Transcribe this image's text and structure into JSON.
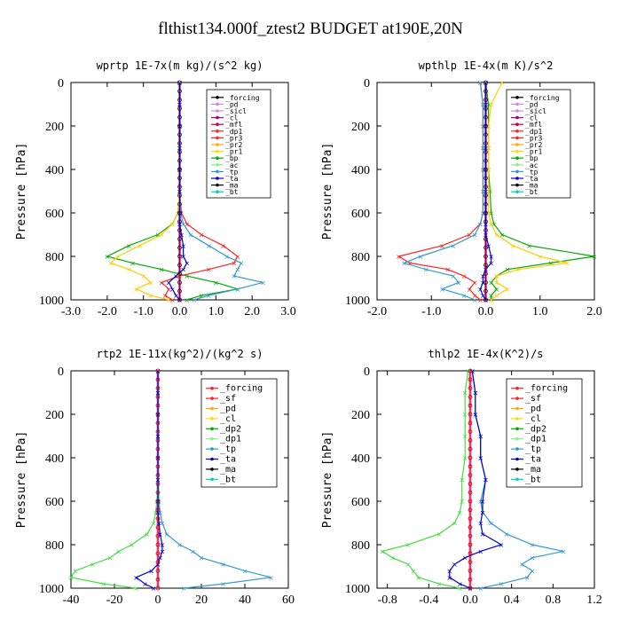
{
  "figure_title": "flthist134.000f_ztest2  BUDGET at190E,20N",
  "chart_data": [
    {
      "type": "line",
      "title": "wprtp  1E-7x(m kg)/(s^2 kg)",
      "ylabel": "Pressure [hPa]",
      "xlim": [
        -3.0,
        3.0
      ],
      "ylim": [
        1000,
        0
      ],
      "xticks": [
        "-3.0",
        "-2.0",
        "-1.0",
        "0.0",
        "1.0",
        "2.0",
        "3.0"
      ],
      "xtick_values": [
        -3,
        -2,
        -1,
        0,
        1,
        2,
        3
      ],
      "yticks": [
        "0",
        "200",
        "400",
        "600",
        "800",
        "1000"
      ],
      "ytick_values": [
        0,
        200,
        400,
        600,
        800,
        1000
      ],
      "legend": [
        "_forcing",
        "_pd",
        "_sicl",
        "_cl",
        "_mfl",
        "_dp1",
        "_pr3",
        "_pr2",
        "_pr1",
        "_bp",
        "_ac",
        "_tp",
        "_ta",
        "_ma",
        "_bt"
      ],
      "legend_colors": [
        "#000000",
        "#cc88ee",
        "#cc88ee",
        "#aa0088",
        "#cc0044",
        "#ff2222",
        "#ff2222",
        "#ffaa00",
        "#ffdd00",
        "#00aa00",
        "#88ee88",
        "#3399cc",
        "#0000cc",
        "#000000",
        "#00cccc"
      ],
      "y": [
        0,
        100,
        200,
        300,
        400,
        500,
        600,
        650,
        700,
        750,
        800,
        830,
        860,
        890,
        920,
        950,
        980,
        1000
      ],
      "series": [
        {
          "name": "_bp",
          "color": "#00aa00",
          "values": [
            0,
            0,
            0,
            0,
            0,
            0,
            -0.05,
            -0.2,
            -0.6,
            -1.4,
            -2.0,
            -1.3,
            -0.5,
            0.2,
            1.0,
            1.6,
            0.6,
            0.2
          ]
        },
        {
          "name": "_ac",
          "color": "#ffcc00",
          "values": [
            0,
            0,
            0,
            0,
            0,
            0,
            -0.05,
            -0.2,
            -0.5,
            -1.1,
            -1.7,
            -1.9,
            -1.4,
            -1.0,
            -0.8,
            -1.2,
            -0.8,
            -0.3
          ]
        },
        {
          "name": "_dp1",
          "color": "#ff2222",
          "values": [
            0,
            0,
            0,
            0,
            0,
            0,
            0.05,
            0.2,
            0.6,
            1.2,
            1.6,
            1.5,
            0.8,
            0.0,
            -0.5,
            -0.3,
            -0.4,
            -0.2
          ]
        },
        {
          "name": "_tp",
          "color": "#3399cc",
          "values": [
            0,
            0,
            0,
            0,
            0,
            0,
            0.03,
            0.1,
            0.3,
            0.8,
            1.3,
            1.7,
            1.6,
            1.5,
            2.3,
            1.6,
            0.8,
            0.4
          ]
        },
        {
          "name": "_ta",
          "color": "#0000cc",
          "values": [
            0,
            0,
            0,
            0,
            0,
            0,
            0,
            0,
            0.05,
            0.1,
            0.1,
            0.2,
            0.1,
            -0.1,
            -0.3,
            -0.2,
            -0.1,
            0
          ]
        }
      ]
    },
    {
      "type": "line",
      "title": "wpthlp  1E-4x(m K)/s^2",
      "ylabel": "Pressure [hPa]",
      "xlim": [
        -2.0,
        2.0
      ],
      "ylim": [
        1000,
        0
      ],
      "xticks": [
        "-2.0",
        "-1.0",
        "0.0",
        "1.0",
        "2.0"
      ],
      "xtick_values": [
        -2,
        -1,
        0,
        1,
        2
      ],
      "yticks": [
        "0",
        "200",
        "400",
        "600",
        "800",
        "1000"
      ],
      "ytick_values": [
        0,
        200,
        400,
        600,
        800,
        1000
      ],
      "legend": [
        "_forcing",
        "_pd",
        "_sicl",
        "_cl",
        "_mfl",
        "_dp1",
        "_pr3",
        "_pr2",
        "_pr1",
        "_bp",
        "_ac",
        "_tp",
        "_ta",
        "_ma",
        "_bt"
      ],
      "legend_colors": [
        "#000000",
        "#cc88ee",
        "#cc88ee",
        "#aa0088",
        "#cc0044",
        "#ff2222",
        "#ff2222",
        "#ffaa00",
        "#ffdd00",
        "#00aa00",
        "#88ee88",
        "#3399cc",
        "#0000cc",
        "#000000",
        "#00cccc"
      ],
      "y": [
        0,
        100,
        200,
        300,
        400,
        500,
        600,
        650,
        700,
        750,
        800,
        830,
        860,
        890,
        920,
        950,
        980,
        1000
      ],
      "series": [
        {
          "name": "_bp",
          "color": "#00aa00",
          "values": [
            0,
            0.05,
            0.05,
            0.05,
            0.05,
            0.08,
            0.1,
            0.15,
            0.3,
            0.8,
            2.0,
            1.2,
            0.4,
            0.2,
            0.1,
            0.2,
            0.1,
            0.1
          ]
        },
        {
          "name": "_ac",
          "color": "#ffcc00",
          "values": [
            0.3,
            0.1,
            0.05,
            0.05,
            0.05,
            0.05,
            0.05,
            0.1,
            0.2,
            0.5,
            1.0,
            1.5,
            0.6,
            0.2,
            0.2,
            0.4,
            0.2,
            0.1
          ]
        },
        {
          "name": "_dp1",
          "color": "#ff2222",
          "values": [
            -0.1,
            -0.05,
            -0.05,
            -0.05,
            -0.05,
            -0.05,
            -0.05,
            -0.1,
            -0.3,
            -0.8,
            -1.6,
            -1.4,
            -0.7,
            -0.4,
            -0.2,
            -0.3,
            -0.2,
            -0.1
          ]
        },
        {
          "name": "_tp",
          "color": "#3399cc",
          "values": [
            -0.1,
            -0.05,
            -0.05,
            -0.05,
            -0.05,
            -0.05,
            -0.05,
            -0.1,
            -0.2,
            -0.6,
            -1.2,
            -1.5,
            -1.1,
            -0.6,
            -0.5,
            -0.8,
            -0.4,
            -0.2
          ]
        },
        {
          "name": "_ta",
          "color": "#0000cc",
          "values": [
            0,
            0,
            0,
            0,
            0,
            0,
            0,
            0,
            0,
            0.05,
            0.1,
            0.1,
            0,
            -0.05,
            -0.05,
            -0.1,
            -0.05,
            0
          ]
        }
      ]
    },
    {
      "type": "line",
      "title": "rtp2  1E-11x(kg^2)/(kg^2 s)",
      "ylabel": "Pressure [hPa]",
      "xlim": [
        -40,
        60
      ],
      "ylim": [
        1000,
        0
      ],
      "xticks": [
        "-40",
        "-20",
        "0",
        "20",
        "40",
        "60"
      ],
      "xtick_values": [
        -40,
        -20,
        0,
        20,
        40,
        60
      ],
      "yticks": [
        "0",
        "200",
        "400",
        "600",
        "800",
        "1000"
      ],
      "ytick_values": [
        0,
        200,
        400,
        600,
        800,
        1000
      ],
      "legend": [
        "_forcing",
        "_sf",
        "_pd",
        "_cl",
        "_dp2",
        "_dp1",
        "_tp",
        "_ta",
        "_ma",
        "_bt"
      ],
      "legend_colors": [
        "#ff2222",
        "#ff2222",
        "#ffaa00",
        "#ffdd00",
        "#00aa00",
        "#88ee88",
        "#3399cc",
        "#0000cc",
        "#000000",
        "#00cccc"
      ],
      "y": [
        0,
        100,
        200,
        300,
        400,
        500,
        600,
        650,
        700,
        750,
        800,
        830,
        860,
        890,
        920,
        950,
        980,
        1000
      ],
      "series": [
        {
          "name": "_dp1",
          "color": "#44dd44",
          "values": [
            0,
            0,
            0,
            0,
            0,
            0,
            -0.5,
            -1,
            -2,
            -5,
            -12,
            -18,
            -22,
            -30,
            -38,
            -40,
            -25,
            -10
          ]
        },
        {
          "name": "_tp",
          "color": "#3399cc",
          "values": [
            0,
            0,
            0,
            0,
            0,
            0,
            0.5,
            1,
            2,
            4,
            10,
            16,
            20,
            30,
            40,
            52,
            30,
            12
          ]
        },
        {
          "name": "_ta",
          "color": "#0000cc",
          "values": [
            0,
            0,
            0,
            0,
            0,
            0,
            0,
            0,
            0.5,
            1,
            2,
            2,
            1,
            0,
            -3,
            -10,
            -6,
            -2
          ]
        }
      ]
    },
    {
      "type": "line",
      "title": "thlp2  1E-4x(K^2)/s",
      "ylabel": "Pressure [hPa]",
      "xlim": [
        -0.9,
        1.2
      ],
      "ylim": [
        1000,
        0
      ],
      "xticks": [
        "-0.8",
        "-0.4",
        "0.0",
        "0.4",
        "0.8",
        "1.2"
      ],
      "xtick_values": [
        -0.8,
        -0.4,
        0.0,
        0.4,
        0.8,
        1.2
      ],
      "yticks": [
        "0",
        "200",
        "400",
        "600",
        "800",
        "1000"
      ],
      "ytick_values": [
        0,
        200,
        400,
        600,
        800,
        1000
      ],
      "legend": [
        "_forcing",
        "_sf",
        "_pd",
        "_cl",
        "_dp2",
        "_dp1",
        "_tp",
        "_ta",
        "_ma",
        "_bt"
      ],
      "legend_colors": [
        "#ff2222",
        "#ff2222",
        "#ffaa00",
        "#ffdd00",
        "#00aa00",
        "#88ee88",
        "#3399cc",
        "#0000cc",
        "#000000",
        "#00cccc"
      ],
      "y": [
        0,
        100,
        200,
        300,
        400,
        500,
        600,
        650,
        700,
        750,
        800,
        830,
        860,
        890,
        920,
        950,
        980,
        1000
      ],
      "series": [
        {
          "name": "_dp1",
          "color": "#44dd44",
          "values": [
            -0.02,
            -0.05,
            -0.05,
            -0.05,
            -0.05,
            -0.08,
            -0.08,
            -0.1,
            -0.15,
            -0.3,
            -0.6,
            -0.85,
            -0.75,
            -0.6,
            -0.55,
            -0.5,
            -0.3,
            -0.1
          ]
        },
        {
          "name": "_tp",
          "color": "#3399cc",
          "values": [
            0.02,
            0.05,
            0.05,
            0.1,
            0.1,
            0.15,
            0.1,
            0.12,
            0.2,
            0.35,
            0.6,
            0.9,
            0.6,
            0.5,
            0.6,
            0.55,
            0.3,
            0.1
          ]
        },
        {
          "name": "_ta",
          "color": "#0000cc",
          "values": [
            0.02,
            0.05,
            0.05,
            0.1,
            0.1,
            0.15,
            0.12,
            0.12,
            0.1,
            0.12,
            0.3,
            0.1,
            -0.05,
            -0.15,
            -0.2,
            -0.2,
            -0.1,
            0
          ]
        }
      ]
    }
  ]
}
